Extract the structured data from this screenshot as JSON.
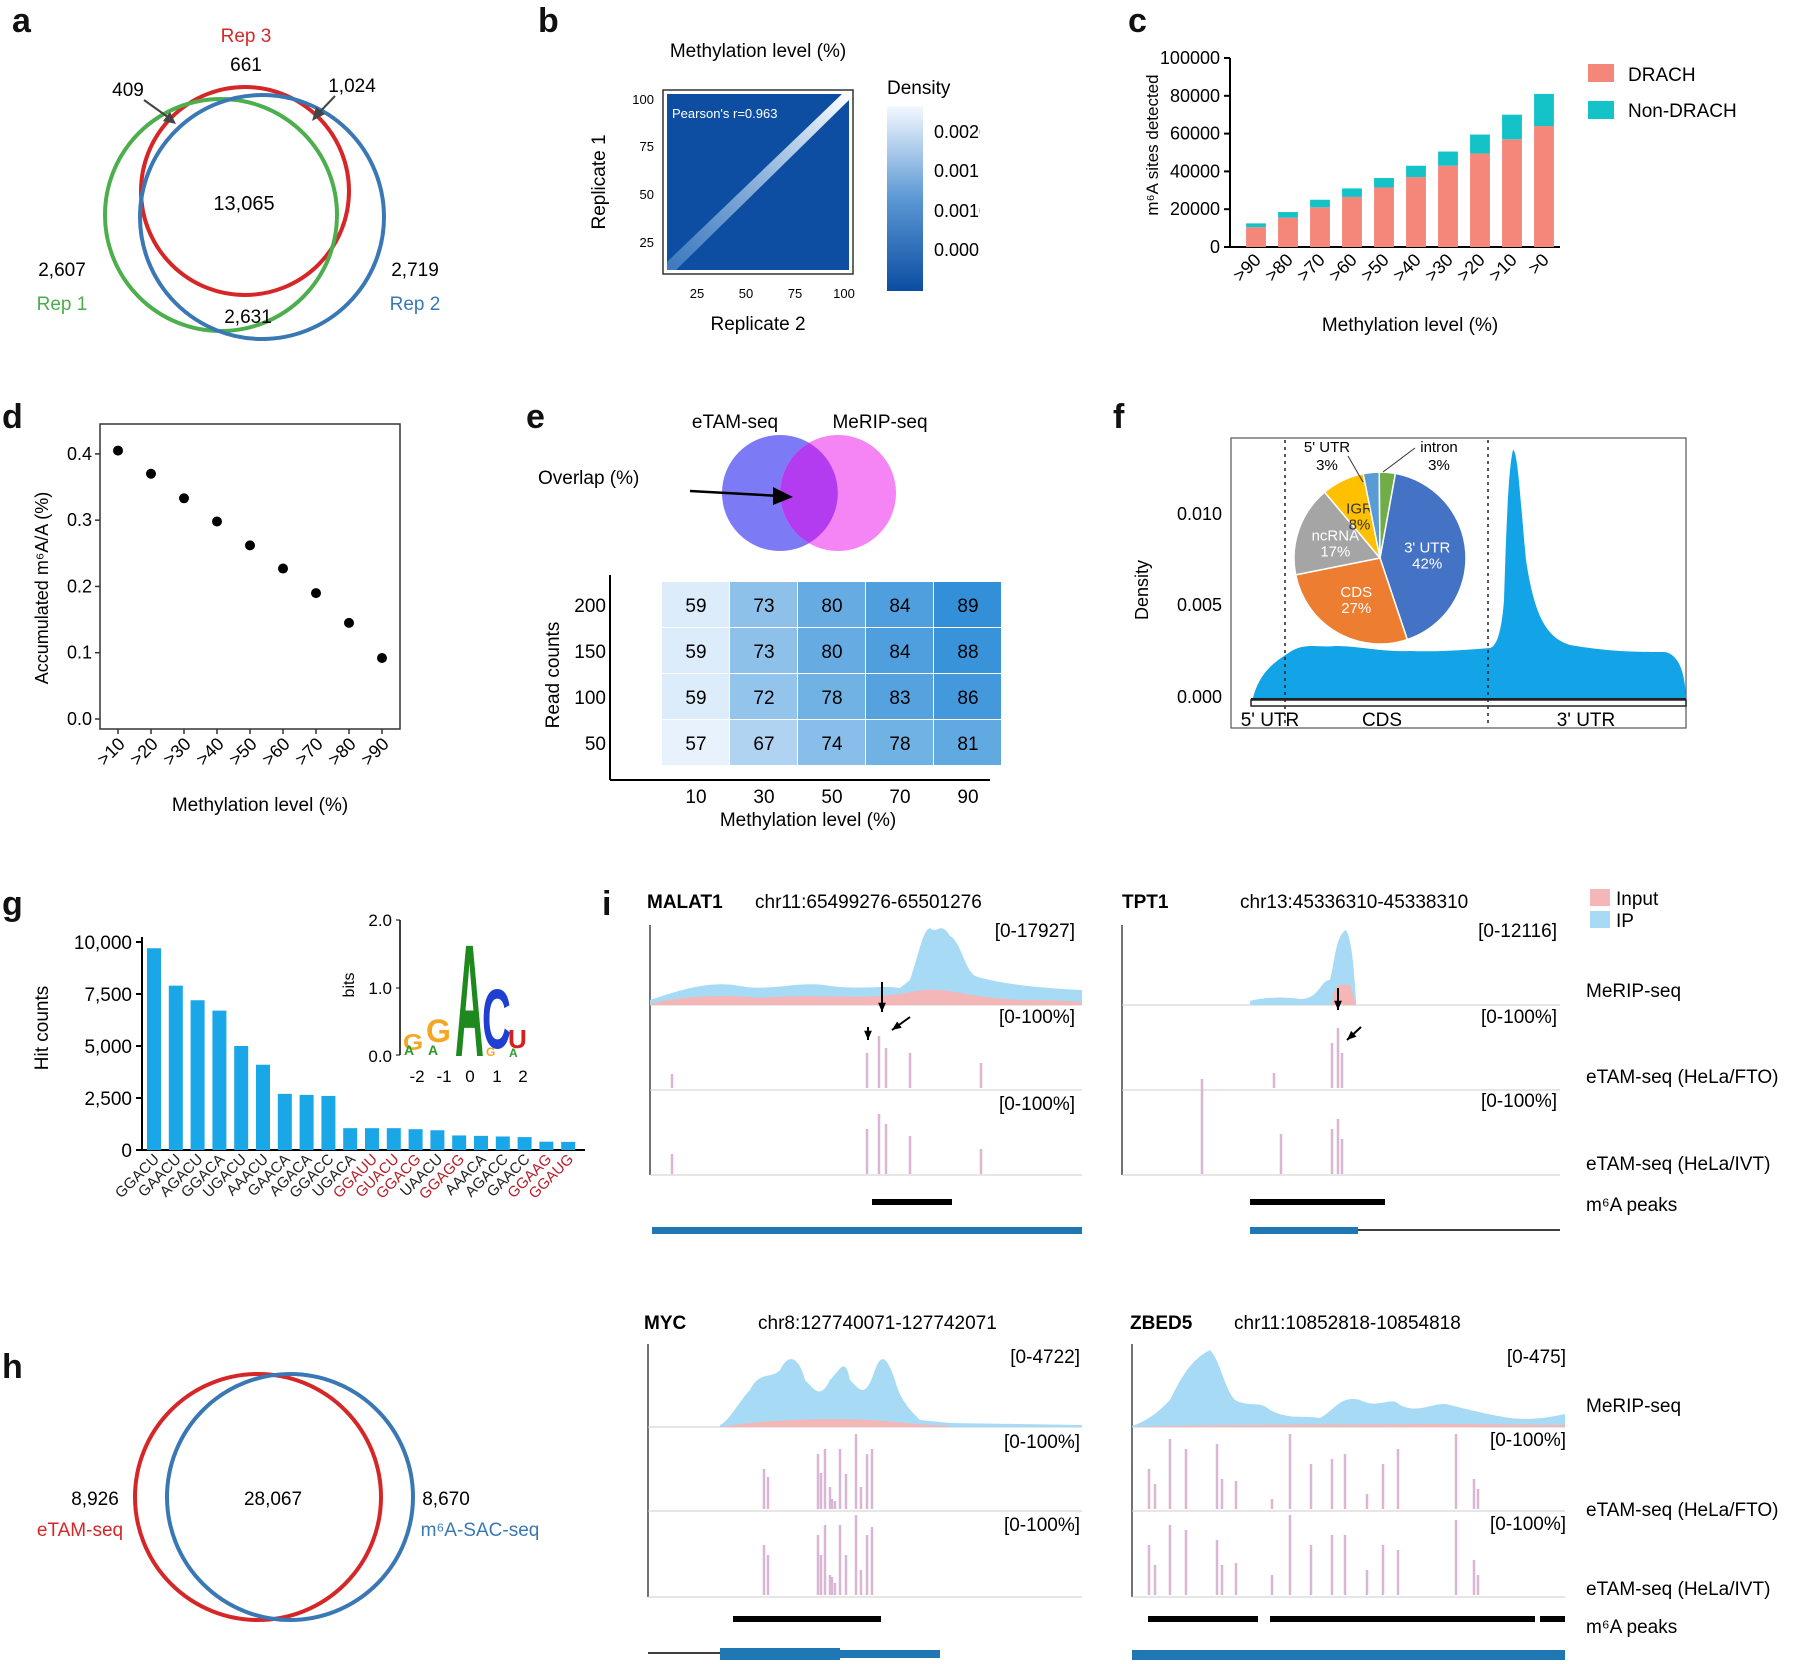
{
  "panel_labels": {
    "a": "a",
    "b": "b",
    "c": "c",
    "d": "d",
    "e": "e",
    "f": "f",
    "g": "g",
    "h": "h",
    "i": "i"
  },
  "panel_a": {
    "sets": [
      {
        "name": "Rep 3",
        "unique": "661",
        "color": "#d62728"
      },
      {
        "name": "Rep 1",
        "unique": "2,607",
        "color": "#4cae4c"
      },
      {
        "name": "Rep 2",
        "unique": "2,719",
        "color": "#3a78b5"
      }
    ],
    "overlap_all": "13,065",
    "overlap_1_3": "409",
    "overlap_2_3": "1,024",
    "overlap_1_2": "2,631"
  },
  "panel_b": {
    "title": "Methylation level (%)",
    "xlabel": "Replicate 2",
    "ylabel": "Replicate 1",
    "ticks": [
      "25",
      "50",
      "75",
      "100"
    ],
    "annotation": "Pearson's r=0.963",
    "legend_title": "Density",
    "legend_ticks": [
      "0.0020",
      "0.0015",
      "0.0010",
      "0.0005"
    ],
    "colors": {
      "low": "#0b4da2",
      "high": "#f4f8ff"
    }
  },
  "panel_c": {
    "chart_data": {
      "type": "bar",
      "categories": [
        ">90",
        ">80",
        ">70",
        ">60",
        ">50",
        ">40",
        ">30",
        ">20",
        ">10",
        ">0"
      ],
      "series": [
        {
          "name": "DRACH",
          "values": [
            10500,
            15500,
            21000,
            26500,
            31500,
            37000,
            43000,
            49500,
            57000,
            64000
          ],
          "color": "#f4877a"
        },
        {
          "name": "Non-DRACH",
          "values": [
            2000,
            3000,
            4000,
            4500,
            5000,
            6000,
            7500,
            10000,
            13000,
            17000
          ],
          "color": "#14c3c7"
        }
      ],
      "xlabel": "Methylation level (%)",
      "ylabel": "m⁶A sites detected",
      "ylim": [
        0,
        100000
      ],
      "yticks": [
        "0",
        "20000",
        "40000",
        "60000",
        "80000",
        "100000"
      ],
      "legend": "top-right"
    }
  },
  "panel_d": {
    "chart_data": {
      "type": "scatter",
      "categories": [
        ">10",
        ">20",
        ">30",
        ">40",
        ">50",
        ">60",
        ">70",
        ">80",
        ">90"
      ],
      "values": [
        0.405,
        0.37,
        0.333,
        0.298,
        0.262,
        0.227,
        0.19,
        0.145,
        0.092
      ],
      "xlabel": "Methylation level (%)",
      "ylabel": "Accumulated m⁶A/A (%)",
      "ylim": [
        0,
        0.43
      ],
      "yticks": [
        "0.0",
        "0.1",
        "0.2",
        "0.3",
        "0.4"
      ]
    }
  },
  "panel_e": {
    "venn": {
      "left": "eTAM-seq",
      "right": "MeRIP-seq",
      "arrow_label": "Overlap (%)"
    },
    "chart_data": {
      "type": "heatmap",
      "x": [
        "10",
        "30",
        "50",
        "70",
        "90"
      ],
      "y": [
        "200",
        "150",
        "100",
        "50"
      ],
      "values": [
        [
          59,
          73,
          80,
          84,
          89
        ],
        [
          59,
          73,
          80,
          84,
          88
        ],
        [
          59,
          72,
          78,
          83,
          86
        ],
        [
          57,
          67,
          74,
          78,
          81
        ]
      ],
      "xlabel": "Methylation level (%)",
      "ylabel": "Read counts"
    }
  },
  "panel_f": {
    "ylabel": "Density",
    "yticks": [
      "0.000",
      "0.005",
      "0.010"
    ],
    "regions": [
      "5' UTR",
      "CDS",
      "3' UTR"
    ],
    "pie": [
      {
        "label": "3' UTR",
        "pct": "42%",
        "value": 42,
        "color": "#4472c4"
      },
      {
        "label": "CDS",
        "pct": "27%",
        "value": 27,
        "color": "#ed7d31"
      },
      {
        "label": "ncRNA",
        "pct": "17%",
        "value": 17,
        "color": "#a5a5a5"
      },
      {
        "label": "IGR",
        "pct": "8%",
        "value": 8,
        "color": "#ffc000"
      },
      {
        "label": "5' UTR",
        "pct": "3%",
        "value": 3,
        "color": "#5b9bd5"
      },
      {
        "label": "intron",
        "pct": "3%",
        "value": 3,
        "color": "#70ad47"
      }
    ],
    "fill_color": "#12a4e6"
  },
  "panel_g": {
    "chart_data": {
      "type": "bar",
      "categories": [
        "GGACU",
        "GAACU",
        "AGACU",
        "GGACA",
        "UGACU",
        "AAACU",
        "GAACA",
        "AGACA",
        "GGACC",
        "UGACA",
        "GGAUU",
        "GUACU",
        "GGACG",
        "UAACU",
        "GGAGG",
        "AAACA",
        "AGACC",
        "GAACC",
        "GGAAG",
        "GGAUG"
      ],
      "values": [
        9700,
        7900,
        7200,
        6700,
        5000,
        4100,
        2700,
        2650,
        2600,
        1050,
        1050,
        1050,
        1000,
        950,
        700,
        680,
        650,
        620,
        400,
        390
      ],
      "highlight": [
        false,
        false,
        false,
        false,
        false,
        false,
        false,
        false,
        false,
        false,
        true,
        true,
        true,
        false,
        true,
        false,
        false,
        false,
        true,
        true
      ],
      "ylabel": "Hit counts",
      "yticks": [
        "0",
        "2,500",
        "5,000",
        "7,500",
        "10,000"
      ],
      "ylim": [
        0,
        10000
      ],
      "color": "#1aa7e8",
      "highlight_color": "#b5202a"
    },
    "logo": {
      "ylabel": "bits",
      "yticks": [
        "0.0",
        "1.0",
        "2.0"
      ],
      "xticks": [
        "-2",
        "-1",
        "0",
        "1",
        "2"
      ]
    }
  },
  "panel_h": {
    "left_name": "eTAM-seq",
    "left_unique": "8,926",
    "right_name": "m⁶A-SAC-seq",
    "right_unique": "8,670",
    "overlap": "28,067"
  },
  "panel_i": {
    "legend": [
      {
        "label": "Input",
        "color": "#f4b6b6"
      },
      {
        "label": "IP",
        "color": "#a7dbf5"
      }
    ],
    "track_labels": {
      "merip": "MeRIP-seq",
      "fto": "eTAM-seq (HeLa/FTO)",
      "ivt": "eTAM-seq (HeLa/IVT)",
      "peaks": "m⁶A peaks"
    },
    "genes": [
      {
        "name": "MALAT1",
        "coords": "chr11:65499276-65501276",
        "merip_range": "[0-17927]",
        "range1": "[0-100%]",
        "range2": "[0-100%]"
      },
      {
        "name": "TPT1",
        "coords": "chr13:45336310-45338310",
        "merip_range": "[0-12116]",
        "range1": "[0-100%]",
        "range2": "[0-100%]"
      },
      {
        "name": "MYC",
        "coords": "chr8:127740071-127742071",
        "merip_range": "[0-4722]",
        "range1": "[0-100%]",
        "range2": "[0-100%]"
      },
      {
        "name": "ZBED5",
        "coords": "chr11:10852818-10854818",
        "merip_range": "[0-475]",
        "range1": "[0-100%]",
        "range2": "[0-100%]"
      }
    ]
  }
}
